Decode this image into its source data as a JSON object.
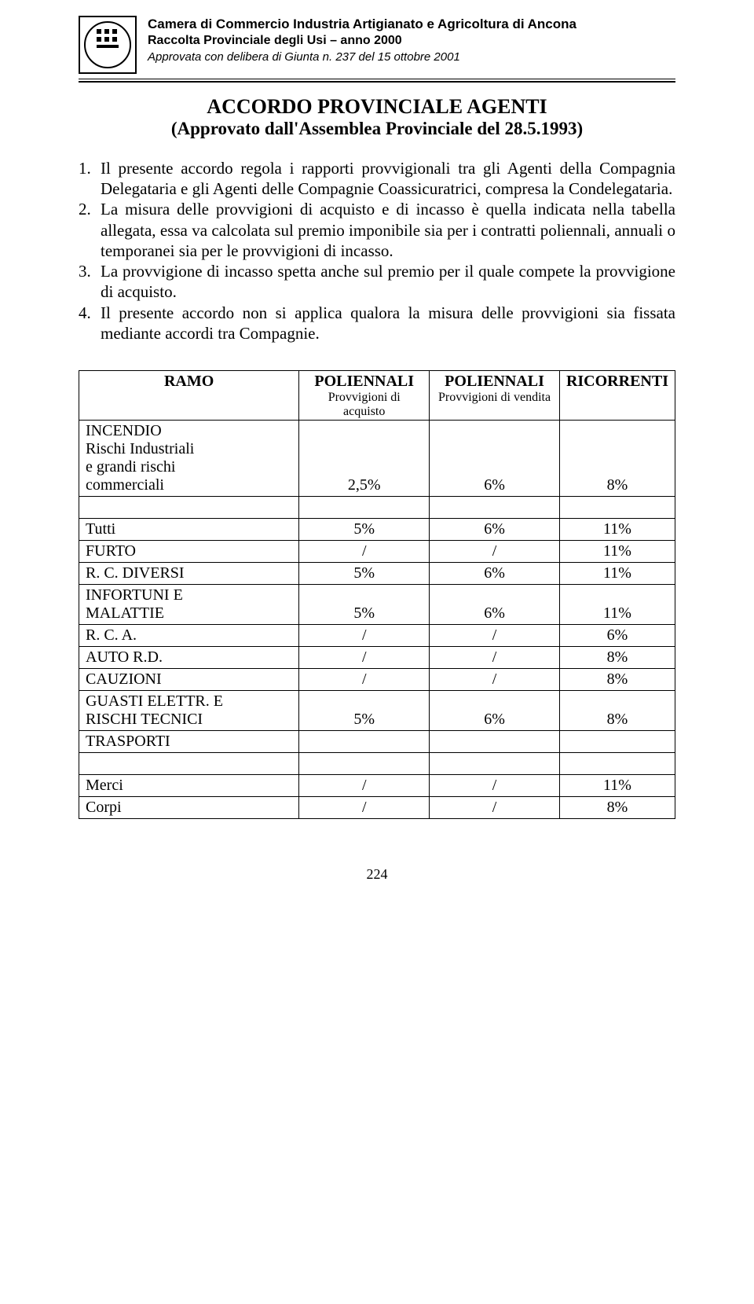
{
  "header": {
    "line1": "Camera di Commercio Industria Artigianato e Agricoltura di Ancona",
    "line2": "Raccolta Provinciale degli Usi – anno 2000",
    "line3": "Approvata con delibera di Giunta n. 237  del 15 ottobre 2001"
  },
  "title": "ACCORDO PROVINCIALE AGENTI",
  "subtitle": "(Approvato dall'Assemblea Provinciale del 28.5.1993)",
  "items": [
    {
      "n": "1.",
      "text": "Il presente accordo regola i rapporti provvigionali tra gli Agenti della Compagnia Delegataria e gli Agenti delle Compagnie Coassicuratrici, compresa la Condelegataria."
    },
    {
      "n": "2.",
      "text": "La misura delle provvigioni di acquisto e di incasso è quella indicata nella tabella allegata, essa va calcolata sul premio imponibile sia per i contratti poliennali, annuali o temporanei sia per le provvigioni di incasso."
    },
    {
      "n": "3.",
      "text": "La provvigione di incasso spetta anche sul premio per il quale compete la provvigione di acquisto."
    },
    {
      "n": "4.",
      "text": "Il presente accordo non si applica qualora la misura delle provvigioni sia fissata mediante accordi tra Compagnie."
    }
  ],
  "table": {
    "columns": {
      "c0": "RAMO",
      "c1": "POLIENNALI",
      "c1sub": "Provvigioni di acquisto",
      "c2": "POLIENNALI",
      "c2sub": "Provvigioni di vendita",
      "c3": "RICORRENTI"
    },
    "rows": [
      {
        "label": "INCENDIO\nRischi Industriali\ne grandi rischi\ncommerciali",
        "v1": "2,5%",
        "v2": "6%",
        "v3": "8%",
        "label_prewrap": true,
        "spacer_after": true
      },
      {
        "label": "Tutti",
        "v1": "5%",
        "v2": "6%",
        "v3": "11%"
      },
      {
        "label": "FURTO",
        "v1": "/",
        "v2": "/",
        "v3": "11%"
      },
      {
        "label": "R. C. DIVERSI",
        "v1": "5%",
        "v2": "6%",
        "v3": "11%"
      },
      {
        "label": "INFORTUNI  E\nMALATTIE",
        "v1": "5%",
        "v2": "6%",
        "v3": "11%",
        "label_prewrap": true
      },
      {
        "label": "R. C. A.",
        "v1": "/",
        "v2": "/",
        "v3": "6%"
      },
      {
        "label": "AUTO R.D.",
        "v1": "/",
        "v2": "/",
        "v3": "8%"
      },
      {
        "label": "CAUZIONI",
        "v1": "/",
        "v2": "/",
        "v3": "8%"
      },
      {
        "label": "GUASTI ELETTR.  E\nRISCHI TECNICI",
        "v1": "5%",
        "v2": "6%",
        "v3": "8%",
        "label_prewrap": true
      },
      {
        "label": "TRASPORTI",
        "v1": "",
        "v2": "",
        "v3": "",
        "spacer_after": true
      },
      {
        "label": "Merci",
        "v1": "/",
        "v2": "/",
        "v3": "11%"
      },
      {
        "label": "Corpi",
        "v1": "/",
        "v2": "/",
        "v3": "8%"
      }
    ]
  },
  "page_number": "224"
}
